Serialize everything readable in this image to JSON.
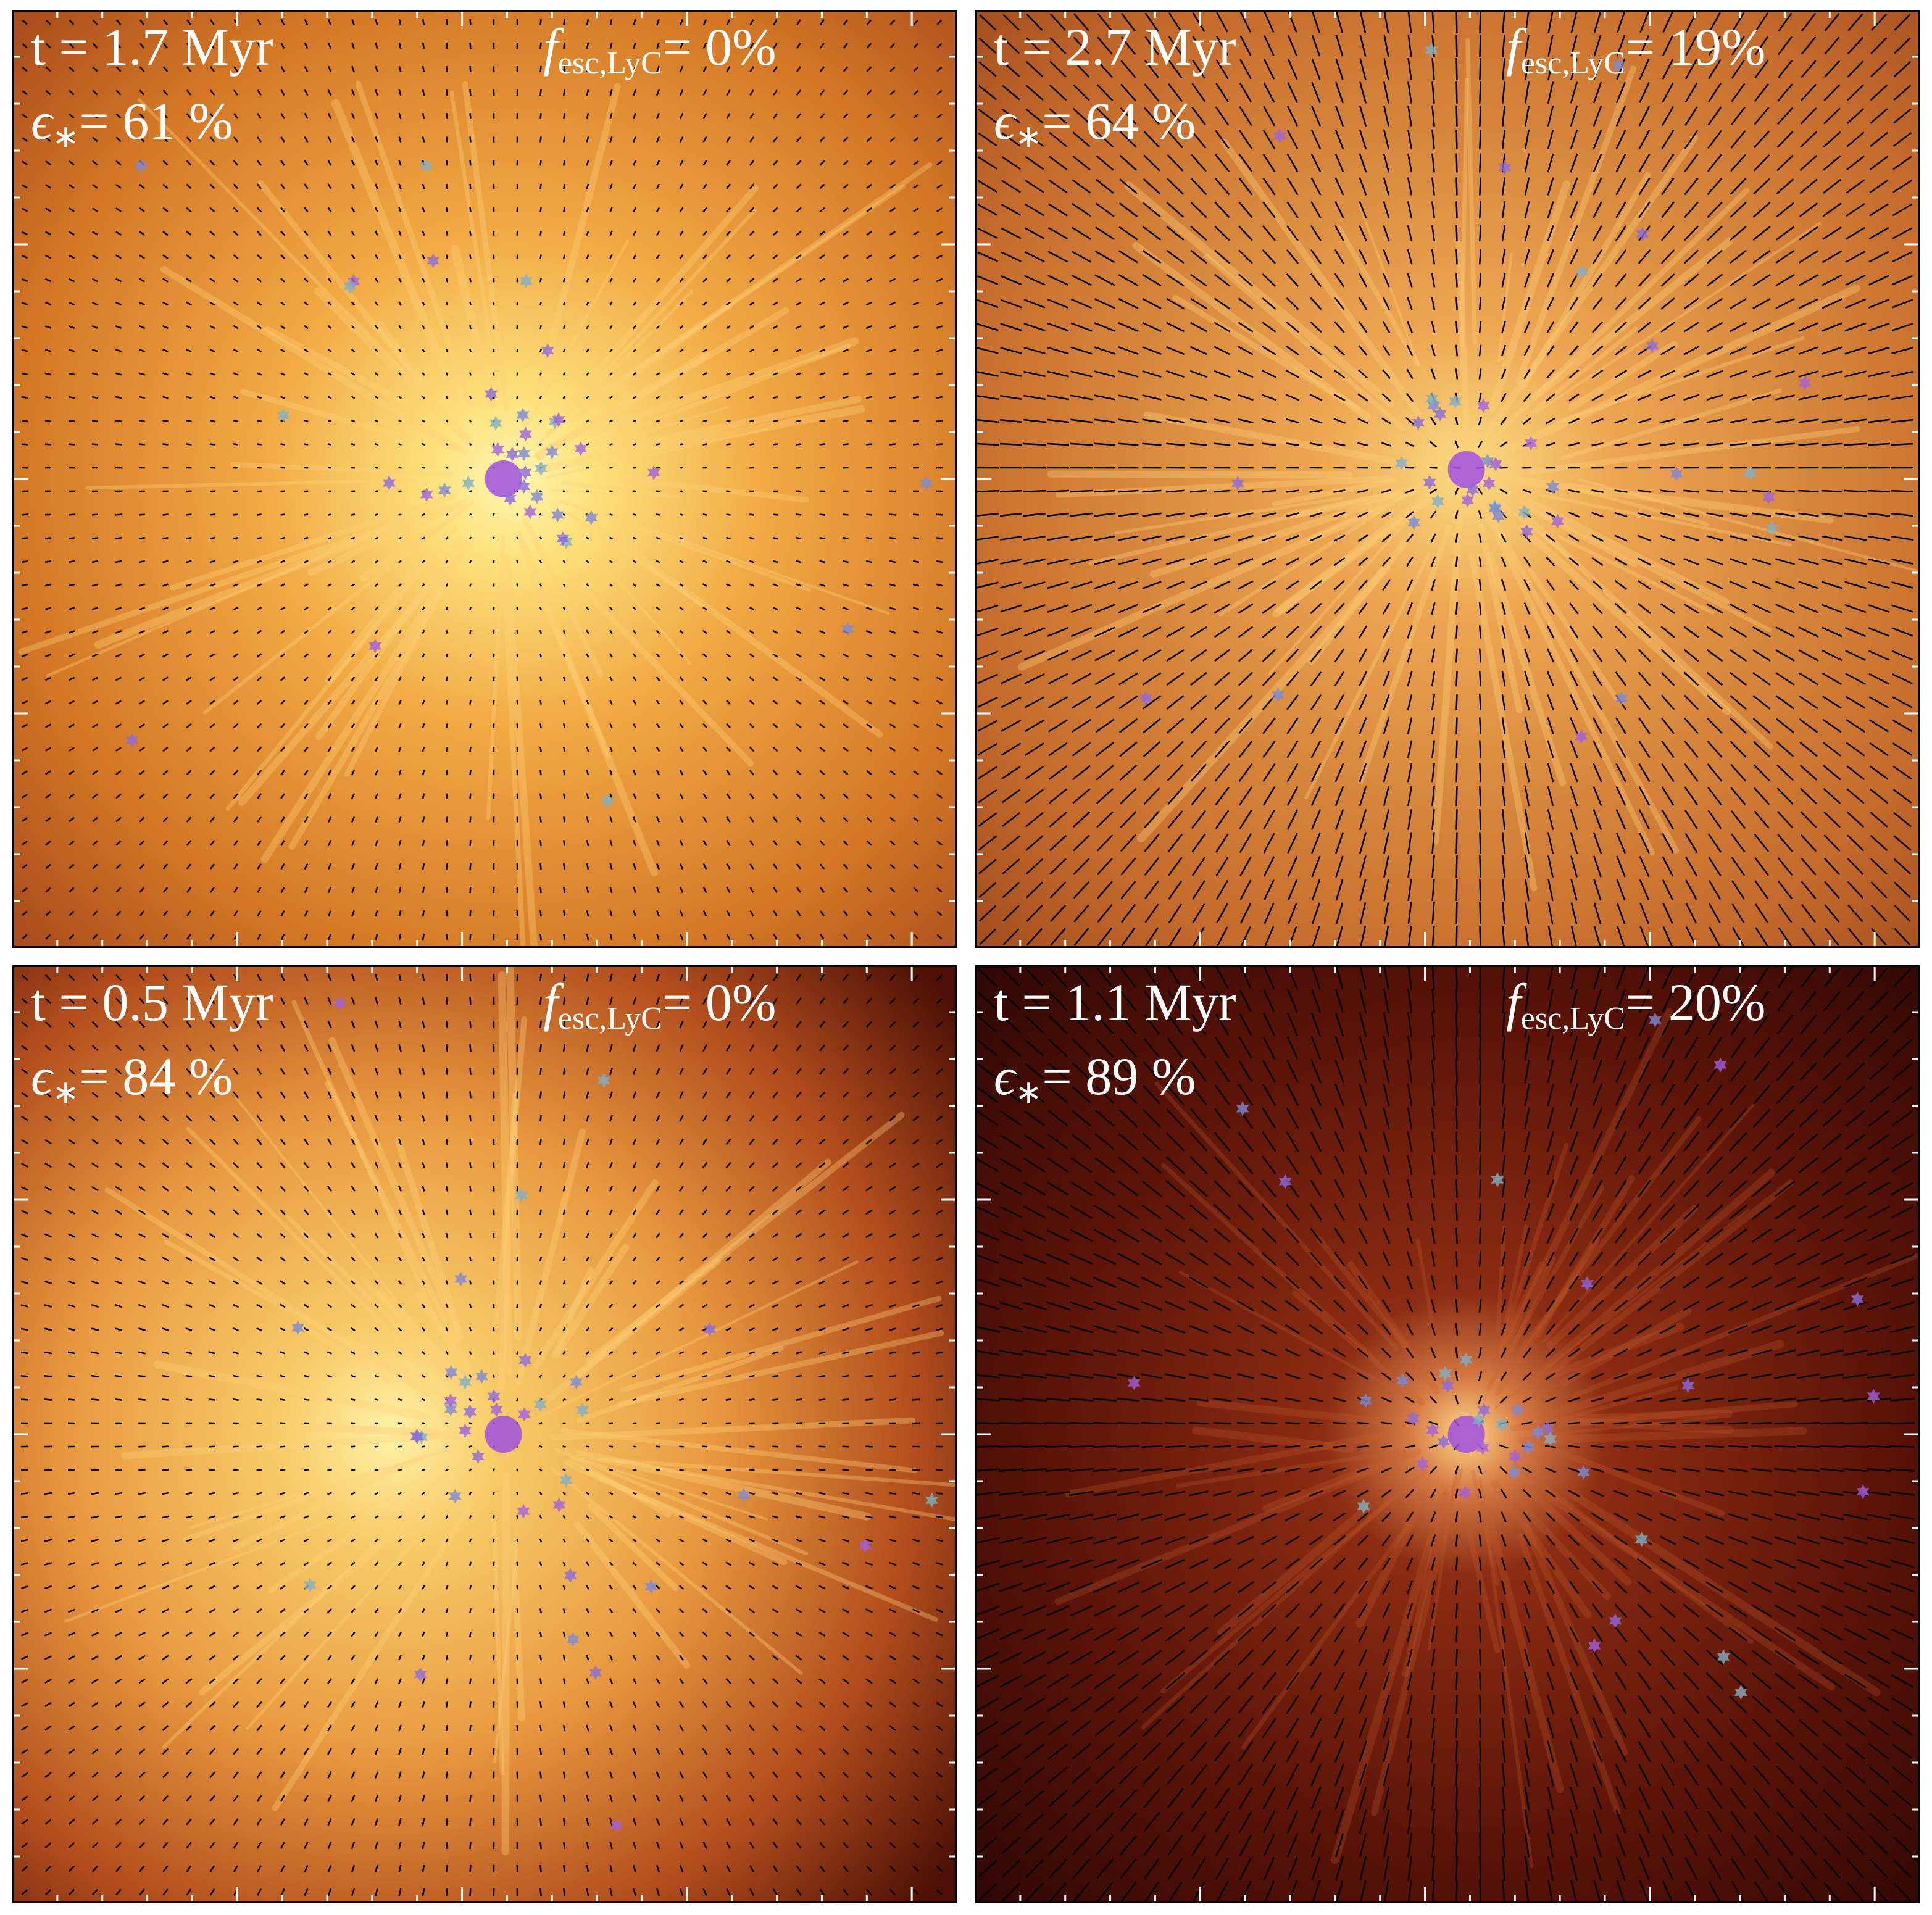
{
  "panels": [
    {
      "time": "t = 1.7 Myr",
      "escape_symbol": "f",
      "escape_subscript": "esc,LyC",
      "escape_value": "= 0%",
      "efficiency_symbol": "ϵ",
      "efficiency_subscript": "∗",
      "efficiency_value": "= 61 %"
    },
    {
      "time": "t = 2.7 Myr",
      "escape_symbol": "f",
      "escape_subscript": "esc,LyC",
      "escape_value": "= 19%",
      "efficiency_symbol": "ϵ",
      "efficiency_subscript": "∗",
      "efficiency_value": "= 64 %"
    },
    {
      "time": "t = 0.5 Myr",
      "escape_symbol": "f",
      "escape_subscript": "esc,LyC",
      "escape_value": "= 0%",
      "efficiency_symbol": "ϵ",
      "efficiency_subscript": "∗",
      "efficiency_value": "= 84 %"
    },
    {
      "time": "t = 1.1 Myr",
      "escape_symbol": "f",
      "escape_subscript": "esc,LyC",
      "escape_value": "= 20%",
      "efficiency_symbol": "ϵ",
      "efficiency_subscript": "∗",
      "efficiency_value": "= 89 %"
    }
  ]
}
